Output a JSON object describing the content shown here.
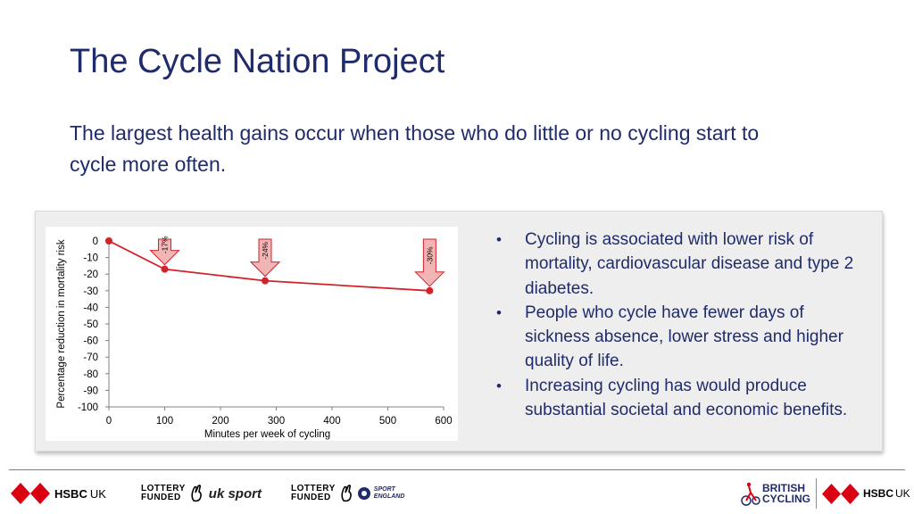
{
  "title": "The Cycle Nation Project",
  "subtitle": "The largest health gains occur when those who do little or no cycling start to cycle more often.",
  "chart_data": {
    "type": "line",
    "x": [
      0,
      100,
      280,
      575
    ],
    "y": [
      0,
      -17,
      -24,
      -30
    ],
    "xticks": [
      "0",
      "100",
      "200",
      "300",
      "400",
      "500",
      "600"
    ],
    "yticks": [
      "0",
      "-10",
      "-20",
      "-30",
      "-40",
      "-50",
      "-60",
      "-70",
      "-80",
      "-90",
      "-100"
    ],
    "xlim": [
      0,
      600
    ],
    "ylim": [
      -100,
      0
    ],
    "xlabel": "Minutes per week of cycling",
    "ylabel": "Percentage reduction in mortality risk",
    "annotations": [
      {
        "x": 100,
        "label": "-17%"
      },
      {
        "x": 280,
        "label": "-24%"
      },
      {
        "x": 575,
        "label": "-30%"
      }
    ],
    "grid": false,
    "colors": {
      "line": "#d2232a",
      "arrow_fill": "#f2b5b5",
      "arrow_stroke": "#d2232a"
    }
  },
  "bullets": [
    "Cycling is associated with lower risk of mortality, cardiovascular disease and type 2 diabetes.",
    "People who cycle have fewer days of sickness absence, lower stress and higher quality of life.",
    "Increasing cycling has would produce substantial societal and economic benefits."
  ],
  "bullet_symbol": "•",
  "footer": {
    "hsbc_left": {
      "name": "HSBC",
      "suffix": "UK"
    },
    "lottery_uksport": {
      "line1": "LOTTERY",
      "line2": "FUNDED",
      "partner": "uk sport"
    },
    "lottery_sportengland": {
      "line1": "LOTTERY",
      "line2": "FUNDED",
      "partner_line1": "SPORT",
      "partner_line2": "ENGLAND"
    },
    "british_cycling": {
      "line1": "BRITISH",
      "line2": "CYCLING"
    },
    "hsbc_right": {
      "name": "HSBC",
      "suffix": "UK"
    }
  },
  "colors": {
    "title": "#1f2b6b",
    "hsbc_red": "#db0011"
  }
}
